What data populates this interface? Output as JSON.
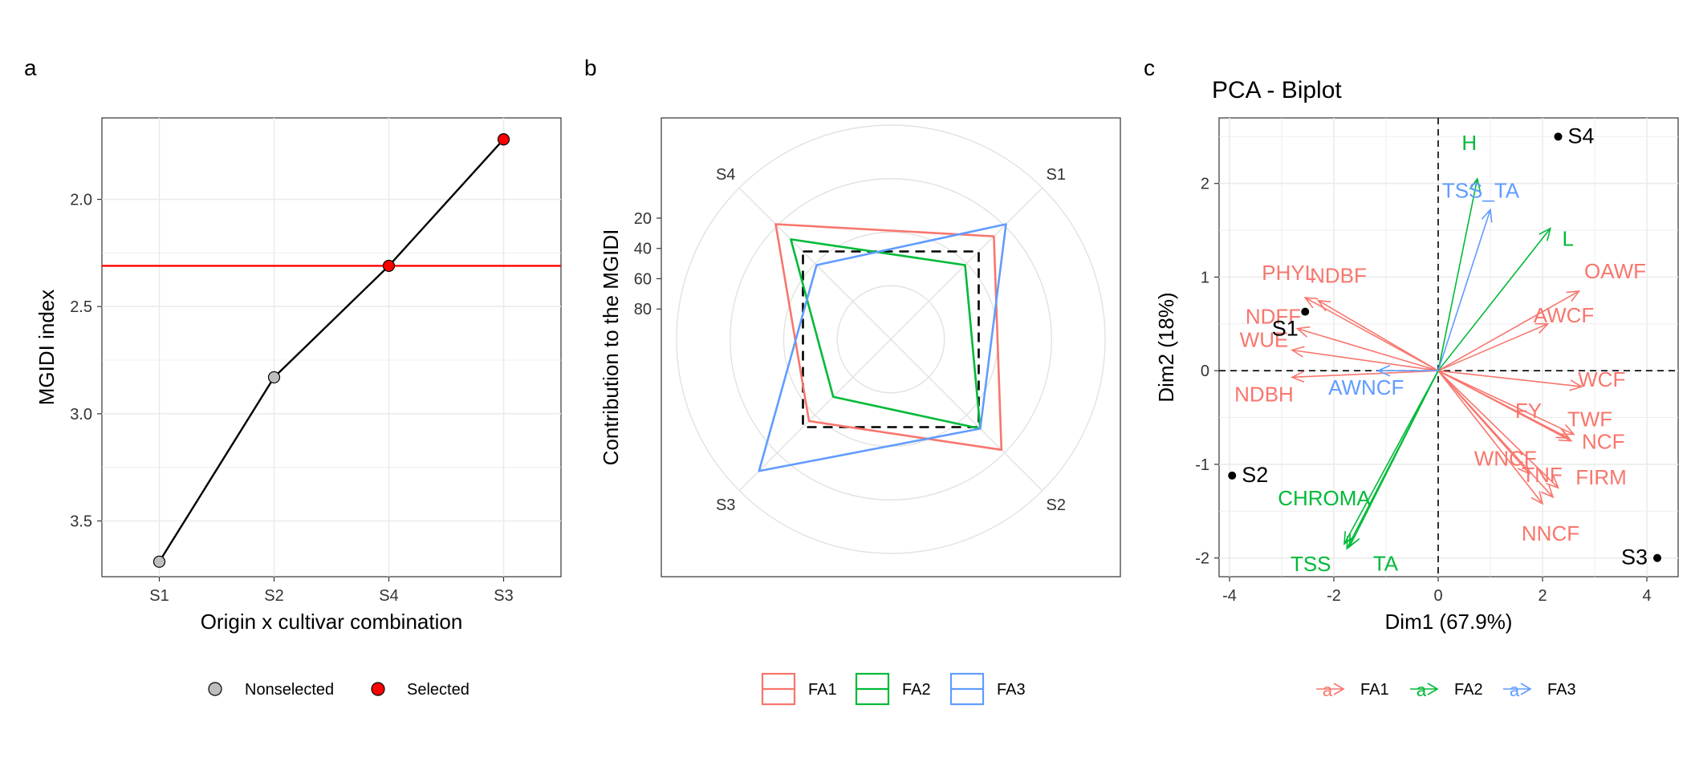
{
  "colors": {
    "FA1": "#f8766d",
    "FA2": "#00ba38",
    "FA3": "#619cff",
    "cutline": "#ff0000",
    "selected": "#ff0000",
    "nonselected": "#bebebe",
    "grid": "#ebebeb"
  },
  "chart_data": [
    {
      "panel": "a",
      "type": "line",
      "title": "",
      "xlabel": "Origin x cultivar combination",
      "ylabel": "MGIDI index",
      "categories": [
        "S1",
        "S2",
        "S4",
        "S3"
      ],
      "values": [
        3.69,
        2.83,
        2.31,
        1.72
      ],
      "status": [
        "Nonselected",
        "Nonselected",
        "Selected",
        "Selected"
      ],
      "ylim": [
        3.76,
        1.62
      ],
      "y_reversed": true,
      "yticks": [
        2.0,
        2.5,
        3.0,
        3.5
      ],
      "ytick_labels": [
        "2.0",
        "2.5",
        "3.0",
        "3.5"
      ],
      "cutline": 2.31,
      "legend": [
        "Nonselected",
        "Selected"
      ],
      "legend_position": "bottom",
      "grid": true
    },
    {
      "panel": "b",
      "type": "radar",
      "title": "",
      "ylabel": "Contribution to the MGIDI",
      "axes": [
        "S1",
        "S2",
        "S3",
        "S4"
      ],
      "radial_ticks": [
        20,
        40,
        60,
        80
      ],
      "radial_max": 100,
      "series": [
        {
          "name": "FA1",
          "values": [
            32,
            27,
            46,
            24
          ]
        },
        {
          "name": "FA2",
          "values": [
            51,
            41,
            62,
            34
          ]
        },
        {
          "name": "FA3",
          "values": [
            24,
            41,
            13,
            51
          ]
        }
      ],
      "reference_square": 42,
      "legend": [
        "FA1",
        "FA2",
        "FA3"
      ],
      "legend_position": "bottom",
      "grid": true
    },
    {
      "panel": "c",
      "type": "scatter",
      "title": "PCA - Biplot",
      "xlabel": "Dim1 (67.9%)",
      "ylabel": "Dim2 (18%)",
      "xlim": [
        -4.2,
        4.6
      ],
      "ylim": [
        -2.2,
        2.7
      ],
      "xticks": [
        -4,
        -2,
        0,
        2,
        4
      ],
      "yticks": [
        -2,
        -1,
        0,
        1,
        2
      ],
      "points": [
        {
          "label": "S1",
          "x": -2.55,
          "y": 0.63
        },
        {
          "label": "S2",
          "x": -3.95,
          "y": -1.12
        },
        {
          "label": "S3",
          "x": 4.2,
          "y": -2.0
        },
        {
          "label": "S4",
          "x": 2.3,
          "y": 2.5
        }
      ],
      "vectors": [
        {
          "label": "PHYL",
          "group": "FA1",
          "x": -2.55,
          "y": 0.78
        },
        {
          "label": "NDBF",
          "group": "FA1",
          "x": -2.3,
          "y": 0.75
        },
        {
          "label": "NDFF",
          "group": "FA1",
          "x": -2.7,
          "y": 0.45
        },
        {
          "label": "WUE",
          "group": "FA1",
          "x": -2.8,
          "y": 0.22
        },
        {
          "label": "NDBH",
          "group": "FA1",
          "x": -2.8,
          "y": -0.07
        },
        {
          "label": "OAWF",
          "group": "FA1",
          "x": 2.7,
          "y": 0.85
        },
        {
          "label": "AWCF",
          "group": "FA1",
          "x": 2.1,
          "y": 0.5
        },
        {
          "label": "WCF",
          "group": "FA1",
          "x": 2.75,
          "y": -0.17
        },
        {
          "label": "TWF",
          "group": "FA1",
          "x": 2.6,
          "y": -0.68
        },
        {
          "label": "NCF",
          "group": "FA1",
          "x": 2.55,
          "y": -0.75
        },
        {
          "label": "FY",
          "group": "FA1",
          "x": 2.5,
          "y": -0.72
        },
        {
          "label": "TNF",
          "group": "FA1",
          "x": 2.3,
          "y": -1.25
        },
        {
          "label": "FIRM",
          "group": "FA1",
          "x": 2.2,
          "y": -1.35
        },
        {
          "label": "WNCF",
          "group": "FA1",
          "x": 1.75,
          "y": -1.1
        },
        {
          "label": "NNCF",
          "group": "FA1",
          "x": 2.0,
          "y": -1.42
        },
        {
          "label": "H",
          "group": "FA2",
          "x": 0.75,
          "y": 2.05
        },
        {
          "label": "L",
          "group": "FA2",
          "x": 2.15,
          "y": 1.52
        },
        {
          "label": "CHROMA",
          "group": "FA2",
          "x": -1.8,
          "y": -1.85
        },
        {
          "label": "TSS",
          "group": "FA2",
          "x": -1.75,
          "y": -1.9
        },
        {
          "label": "TA",
          "group": "FA2",
          "x": -1.7,
          "y": -1.88
        },
        {
          "label": "TSS_TA",
          "group": "FA3",
          "x": 1.0,
          "y": 1.72
        },
        {
          "label": "AWNCF",
          "group": "FA3",
          "x": -1.15,
          "y": 0.0
        }
      ],
      "legend": [
        "FA1",
        "FA2",
        "FA3"
      ],
      "legend_symbol": "a",
      "legend_position": "bottom",
      "grid": true
    }
  ],
  "panel_labels": [
    "a",
    "b",
    "c"
  ]
}
